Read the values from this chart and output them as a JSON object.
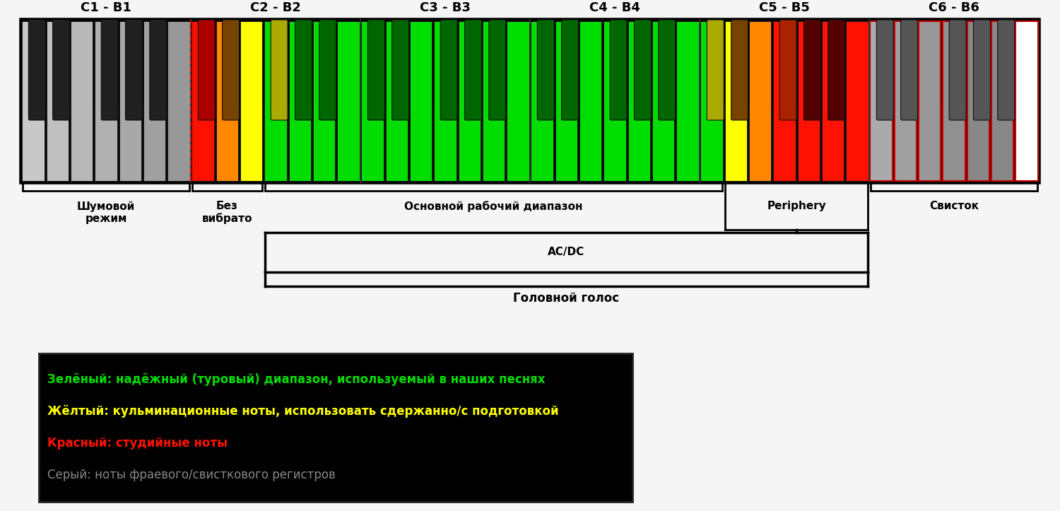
{
  "octave_labels": [
    "C1 - B1",
    "C2 - B2",
    "C3 - B3",
    "C4 - B4",
    "C5 - B5",
    "C6 - B6"
  ],
  "white_key_colors_per_octave": [
    [
      "#c8c8c8",
      "#c0c0c0",
      "#b8b8b8",
      "#b0b0b0",
      "#a8a8a8",
      "#a0a0a0",
      "#989898"
    ],
    [
      "#ff1100",
      "#ff8800",
      "#ffff00",
      "#00dd00",
      "#00dd00",
      "#00dd00",
      "#00dd00"
    ],
    [
      "#00dd00",
      "#00dd00",
      "#00dd00",
      "#00dd00",
      "#00dd00",
      "#00dd00",
      "#00dd00"
    ],
    [
      "#00dd00",
      "#00dd00",
      "#00dd00",
      "#00dd00",
      "#00dd00",
      "#00dd00",
      "#00dd00"
    ],
    [
      "#00dd00",
      "#ffff00",
      "#ff8800",
      "#ff1100",
      "#ff1100",
      "#ff1100",
      "#ff1100"
    ],
    [
      "#aaaaaa",
      "#a0a0a0",
      "#989898",
      "#909090",
      "#888888",
      "#888888",
      "#ffffff"
    ]
  ],
  "black_key_colors_per_octave": [
    [
      "#202020",
      "#202020",
      "#202020",
      "#202020",
      "#202020"
    ],
    [
      "#aa0000",
      "#774400",
      "#aaaa00",
      "#006600",
      "#006600"
    ],
    [
      "#006600",
      "#006600",
      "#006600",
      "#006600",
      "#006600"
    ],
    [
      "#006600",
      "#006600",
      "#006600",
      "#006600",
      "#006600"
    ],
    [
      "#aaaa00",
      "#774400",
      "#aa2200",
      "#550000",
      "#550000"
    ],
    [
      "#555555",
      "#555555",
      "#555555",
      "#555555",
      "#555555"
    ]
  ],
  "background_color": "#f5f5f5",
  "keyboard_bg": "#0a0a0a",
  "legend_bg": "#000000",
  "legend_lines": [
    {
      "text": "Зелёный: надёжный (туровый) диапазон, используемый в наших песнях",
      "color": "#00dd00",
      "bold": true
    },
    {
      "text": "Жёлтый: кульминационные ноты, использовать сдержанно/с подготовкой",
      "color": "#ffff00",
      "bold": true
    },
    {
      "text": "Красный: студийные ноты",
      "color": "#ff1100",
      "bold": true
    },
    {
      "text": "Серый: ноты фраевого/свисткового регистров",
      "color": "#888888",
      "bold": false
    }
  ]
}
